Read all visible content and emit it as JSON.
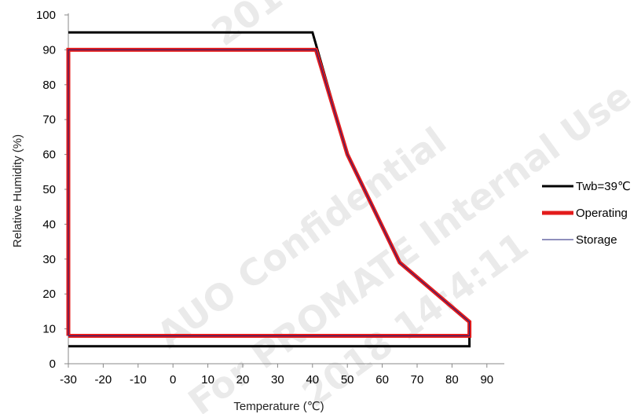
{
  "chart_data": {
    "type": "line",
    "xlabel": "Temperature (℃)",
    "ylabel": "Relative Humidity (%)",
    "xlim": [
      -30,
      95
    ],
    "ylim": [
      0,
      100
    ],
    "xticks": [
      -30,
      -20,
      -10,
      0,
      10,
      20,
      30,
      40,
      50,
      60,
      70,
      80,
      90
    ],
    "yticks": [
      0,
      10,
      20,
      30,
      40,
      50,
      60,
      70,
      80,
      90,
      100
    ],
    "grid": false,
    "legend_position": "right",
    "series": [
      {
        "name": "Twb=39℃",
        "color": "#000000",
        "points": [
          [
            -30,
            95
          ],
          [
            40,
            95
          ],
          [
            42,
            88
          ],
          [
            50,
            60
          ],
          [
            65,
            29
          ],
          [
            85,
            12
          ],
          [
            85,
            5
          ],
          [
            -30,
            5
          ]
        ]
      },
      {
        "name": "Operating",
        "color": "#e31c1c",
        "points": [
          [
            -30,
            8
          ],
          [
            -30,
            90
          ],
          [
            41,
            90
          ],
          [
            50,
            60
          ],
          [
            65,
            29
          ],
          [
            85,
            12
          ],
          [
            85,
            8
          ],
          [
            -30,
            8
          ]
        ]
      },
      {
        "name": "Storage",
        "color": "#1f1f7a",
        "points": [
          [
            -30,
            8
          ],
          [
            -30,
            90
          ],
          [
            41,
            90
          ],
          [
            50,
            60
          ],
          [
            65,
            29
          ],
          [
            85,
            12
          ],
          [
            85,
            8
          ],
          [
            -30,
            8
          ]
        ]
      }
    ]
  },
  "watermarks": [
    "AUO Confidential",
    "For PROMATE Internal Use",
    "2017/...",
    "2018 14:4:11"
  ]
}
